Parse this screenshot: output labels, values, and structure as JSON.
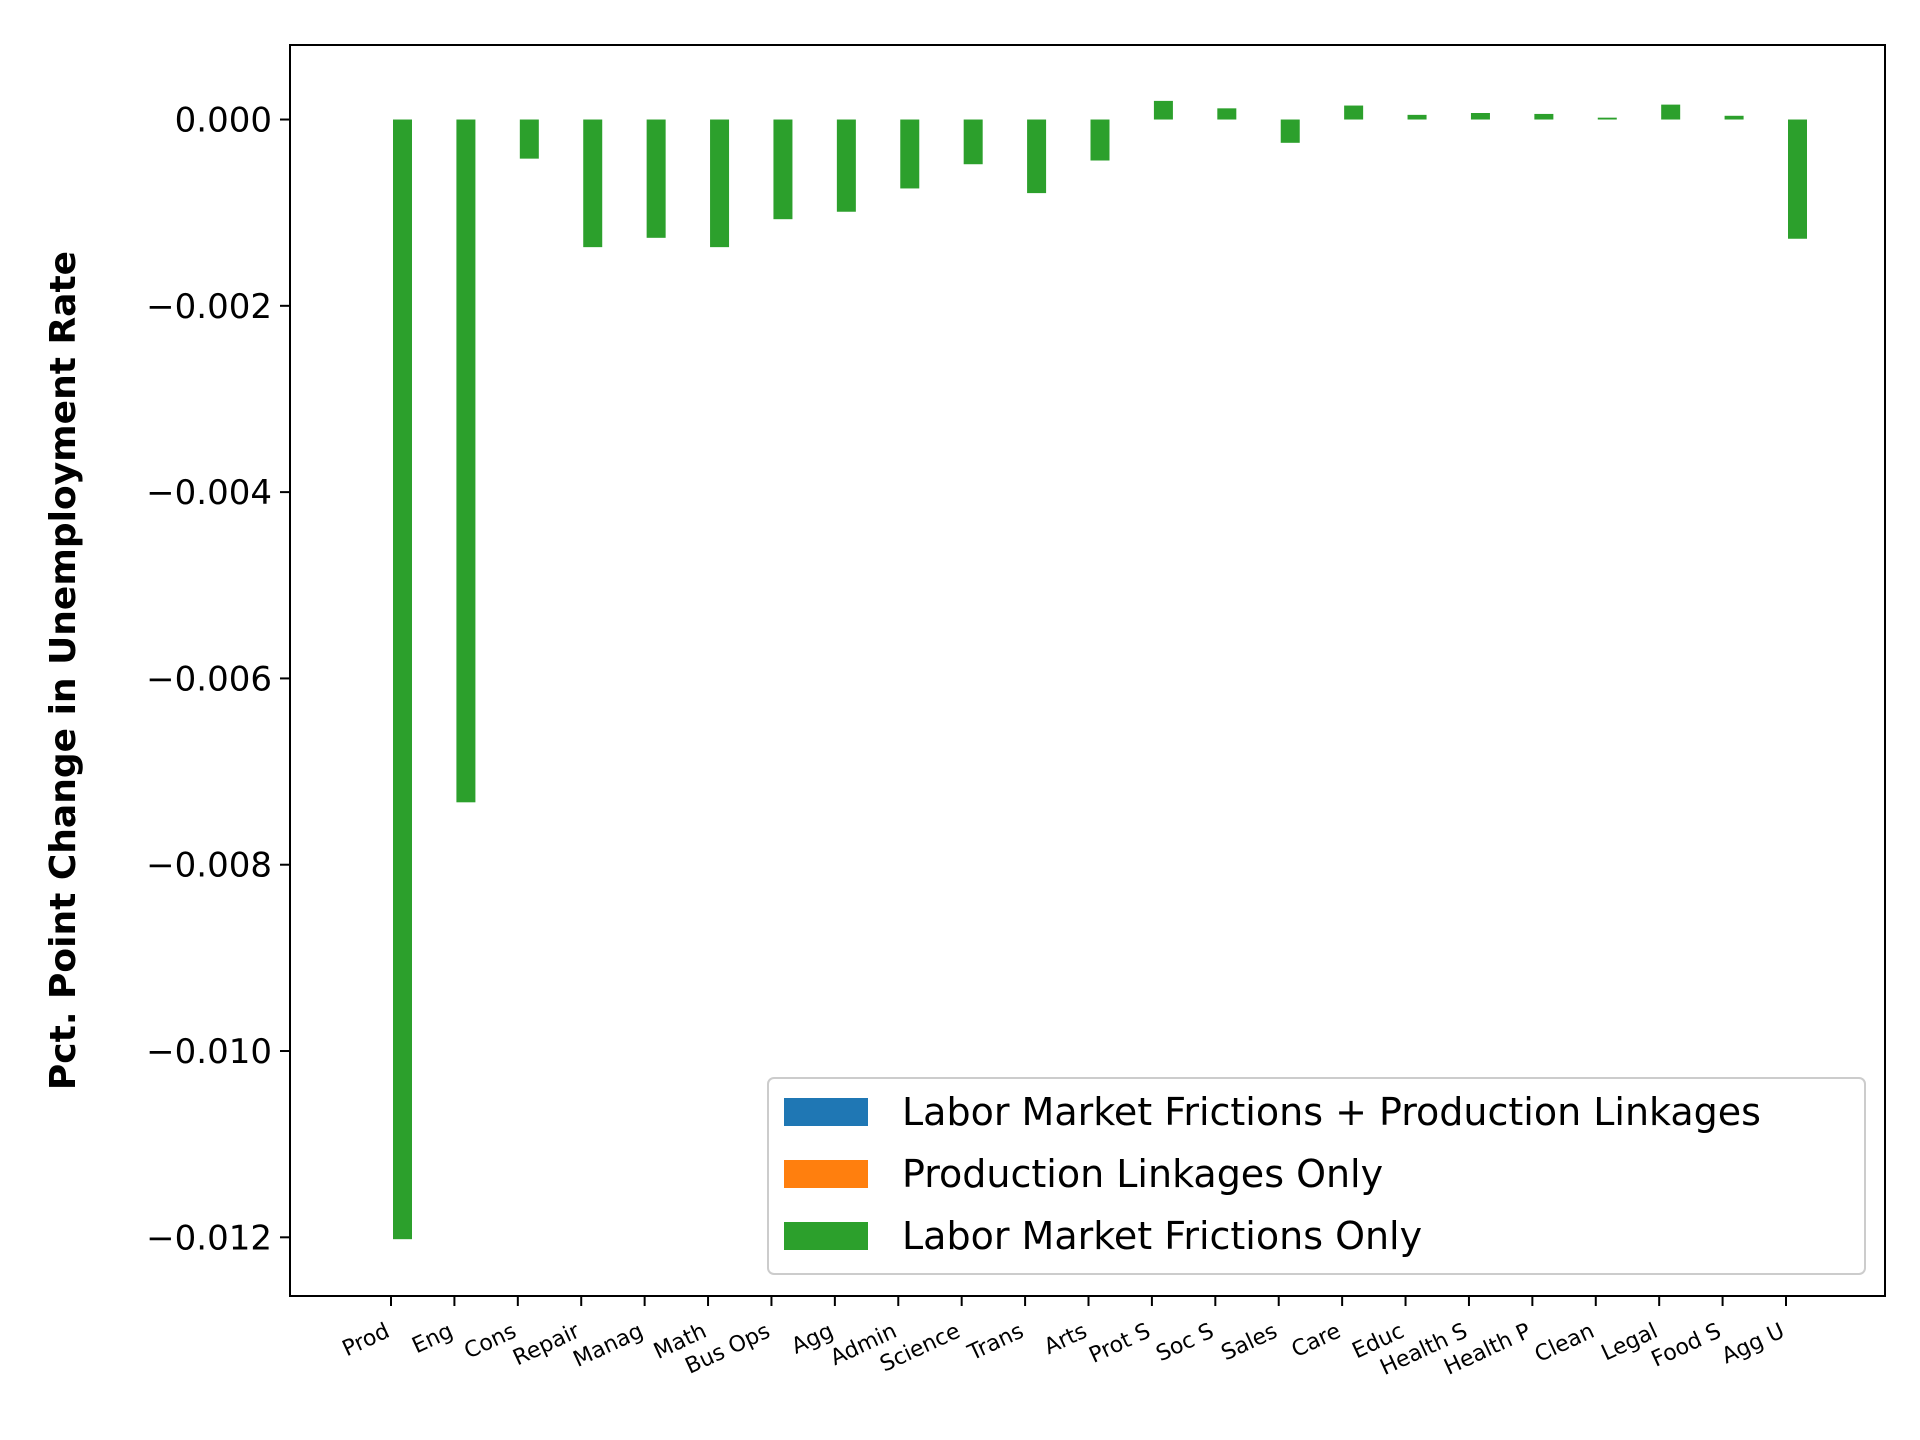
{
  "chart_data": {
    "type": "bar",
    "title": "",
    "xlabel": "",
    "ylabel": "Pct. Point Change in Unemployment Rate",
    "categories": [
      "Prod",
      "Eng",
      "Cons",
      "Repair",
      "Manag",
      "Math",
      "Bus Ops",
      "Agg",
      "Admin",
      "Science",
      "Trans",
      "Arts",
      "Prot S",
      "Soc S",
      "Sales",
      "Care",
      "Educ",
      "Health S",
      "Health P",
      "Clean",
      "Legal",
      "Food S",
      "Agg U"
    ],
    "series": [
      {
        "name": "Labor Market Frictions + Production Linkages",
        "color": "#1f77b4",
        "values": [
          0,
          0,
          0,
          0,
          0,
          0,
          0,
          0,
          0,
          0,
          0,
          0,
          0,
          0,
          0,
          0,
          0,
          0,
          0,
          0,
          0,
          0,
          0
        ]
      },
      {
        "name": "Production Linkages Only",
        "color": "#ff7f0e",
        "values": [
          0,
          0,
          0,
          0,
          0,
          0,
          0,
          0,
          0,
          0,
          0,
          0,
          0,
          0,
          0,
          0,
          0,
          0,
          0,
          0,
          0,
          0,
          0
        ]
      },
      {
        "name": "Labor Market Frictions Only",
        "color": "#2ca02c",
        "values": [
          -0.01202,
          -0.00733,
          -0.00042,
          -0.00137,
          -0.00127,
          -0.00137,
          -0.00107,
          -0.00099,
          -0.00074,
          -0.00048,
          -0.00079,
          -0.00044,
          0.0002,
          0.00012,
          -0.00025,
          0.00015,
          5e-05,
          7e-05,
          6e-05,
          2e-05,
          0.00016,
          4e-05,
          -0.00128
        ]
      }
    ],
    "ylim": [
      -0.01263,
      0.0008
    ],
    "yticks": [
      "0.000",
      "−0.002",
      "−0.004",
      "−0.006",
      "−0.008",
      "−0.010",
      "−0.012"
    ],
    "ytick_values": [
      0,
      -0.002,
      -0.004,
      -0.006,
      -0.008,
      -0.01,
      -0.012
    ],
    "legend_position": "lower-right",
    "grid": false
  }
}
